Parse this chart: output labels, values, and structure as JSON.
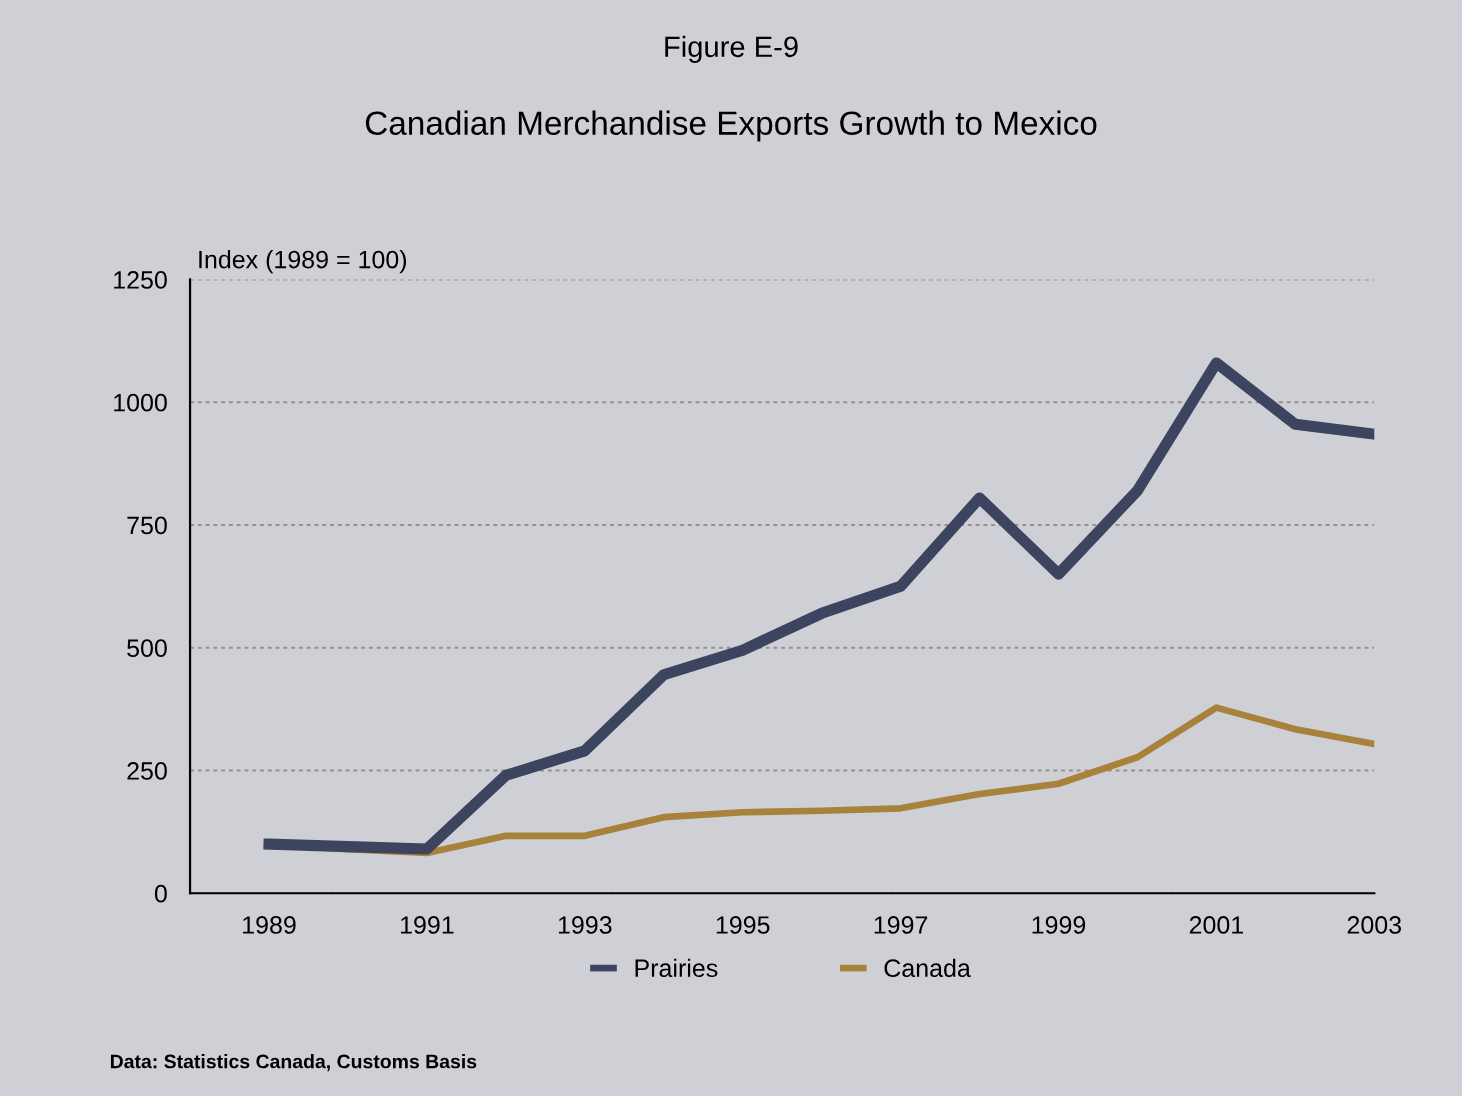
{
  "chart_data": {
    "type": "line",
    "title": "Figure E-9",
    "subtitle": "Canadian Merchandise Exports Growth to Mexico",
    "ylabel": "Index (1989 = 100)",
    "x": [
      1989,
      1990,
      1991,
      1992,
      1993,
      1994,
      1995,
      1996,
      1997,
      1998,
      1999,
      2000,
      2001,
      2002,
      2003
    ],
    "series": [
      {
        "name": "Prairies",
        "color": "#3d4460",
        "values": [
          100,
          95,
          90,
          240,
          290,
          445,
          495,
          570,
          625,
          805,
          650,
          820,
          1080,
          955,
          935
        ]
      },
      {
        "name": "Canada",
        "color": "#a8823a",
        "values": [
          100,
          90,
          82,
          117,
          117,
          155,
          165,
          168,
          173,
          202,
          223,
          277,
          378,
          334,
          304
        ]
      }
    ],
    "xlim": [
      1988,
      2003
    ],
    "xticks": [
      1989,
      1991,
      1993,
      1995,
      1997,
      1999,
      2001,
      2003
    ],
    "ylim": [
      0,
      1250
    ],
    "yticks": [
      0,
      250,
      500,
      750,
      1000,
      1250
    ],
    "grid": "y",
    "legend": "bottom",
    "marker": "none",
    "line_style": "solid",
    "annotations": [
      "Data: Statistics Canada, Customs Basis"
    ]
  }
}
